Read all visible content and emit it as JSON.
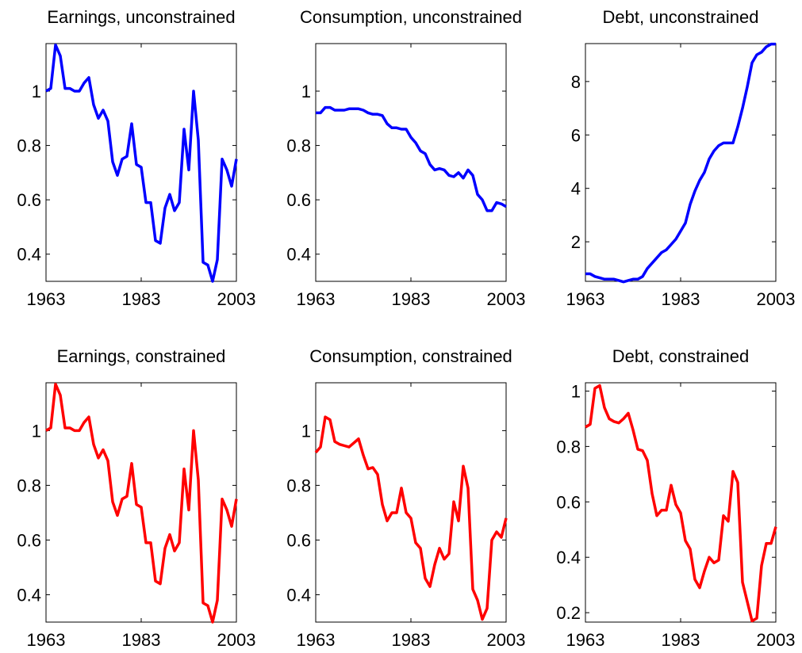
{
  "chart_data": [
    {
      "type": "line",
      "title": "Earnings, unconstrained",
      "color": "#0000ff",
      "x": [
        1963,
        1964,
        1965,
        1966,
        1967,
        1968,
        1969,
        1970,
        1971,
        1972,
        1973,
        1974,
        1975,
        1976,
        1977,
        1978,
        1979,
        1980,
        1981,
        1982,
        1983,
        1984,
        1985,
        1986,
        1987,
        1988,
        1989,
        1990,
        1991,
        1992,
        1993,
        1994,
        1995,
        1996,
        1997,
        1998,
        1999,
        2000,
        2001,
        2002,
        2003
      ],
      "values": [
        1.0,
        1.01,
        1.17,
        1.13,
        1.01,
        1.01,
        1.0,
        1.0,
        1.03,
        1.05,
        0.95,
        0.9,
        0.93,
        0.89,
        0.74,
        0.69,
        0.75,
        0.76,
        0.88,
        0.73,
        0.72,
        0.59,
        0.59,
        0.45,
        0.44,
        0.57,
        0.62,
        0.56,
        0.59,
        0.86,
        0.71,
        1.0,
        0.82,
        0.37,
        0.36,
        0.3,
        0.38,
        0.75,
        0.71,
        0.65,
        0.75
      ],
      "xlim": [
        1963,
        2003
      ],
      "xticks": [
        1963,
        1983,
        2003
      ],
      "ylim": [
        0.3,
        1.175
      ],
      "yticks": [
        0.4,
        0.6,
        0.8,
        1
      ]
    },
    {
      "type": "line",
      "title": "Consumption, unconstrained",
      "color": "#0000ff",
      "x": [
        1963,
        1964,
        1965,
        1966,
        1967,
        1968,
        1969,
        1970,
        1971,
        1972,
        1973,
        1974,
        1975,
        1976,
        1977,
        1978,
        1979,
        1980,
        1981,
        1982,
        1983,
        1984,
        1985,
        1986,
        1987,
        1988,
        1989,
        1990,
        1991,
        1992,
        1993,
        1994,
        1995,
        1996,
        1997,
        1998,
        1999,
        2000,
        2001,
        2002,
        2003
      ],
      "values": [
        0.92,
        0.92,
        0.94,
        0.94,
        0.93,
        0.93,
        0.93,
        0.935,
        0.935,
        0.935,
        0.93,
        0.92,
        0.915,
        0.915,
        0.91,
        0.88,
        0.865,
        0.865,
        0.86,
        0.86,
        0.83,
        0.81,
        0.78,
        0.77,
        0.73,
        0.71,
        0.715,
        0.71,
        0.69,
        0.685,
        0.7,
        0.68,
        0.71,
        0.69,
        0.62,
        0.6,
        0.56,
        0.56,
        0.59,
        0.585,
        0.575
      ],
      "xlim": [
        1963,
        2003
      ],
      "xticks": [
        1963,
        1983,
        2003
      ],
      "ylim": [
        0.3,
        1.175
      ],
      "yticks": [
        0.4,
        0.6,
        0.8,
        1
      ]
    },
    {
      "type": "line",
      "title": "Debt, unconstrained",
      "color": "#0000ff",
      "x": [
        1963,
        1964,
        1965,
        1966,
        1967,
        1968,
        1969,
        1970,
        1971,
        1972,
        1973,
        1974,
        1975,
        1976,
        1977,
        1978,
        1979,
        1980,
        1981,
        1982,
        1983,
        1984,
        1985,
        1986,
        1987,
        1988,
        1989,
        1990,
        1991,
        1992,
        1993,
        1994,
        1995,
        1996,
        1997,
        1998,
        1999,
        2000,
        2001,
        2002,
        2003
      ],
      "values": [
        0.8,
        0.8,
        0.7,
        0.65,
        0.6,
        0.6,
        0.6,
        0.55,
        0.5,
        0.55,
        0.6,
        0.6,
        0.7,
        1.0,
        1.2,
        1.4,
        1.6,
        1.7,
        1.9,
        2.1,
        2.4,
        2.7,
        3.4,
        3.9,
        4.3,
        4.6,
        5.1,
        5.4,
        5.6,
        5.7,
        5.7,
        5.7,
        6.3,
        7.0,
        7.8,
        8.7,
        9.0,
        9.1,
        9.3,
        9.4,
        9.4
      ],
      "xlim": [
        1963,
        2003
      ],
      "xticks": [
        1963,
        1983,
        2003
      ],
      "ylim": [
        0.52,
        9.42
      ],
      "yticks": [
        2,
        4,
        6,
        8
      ]
    },
    {
      "type": "line",
      "title": "Earnings, constrained",
      "color": "#ff0000",
      "x": [
        1963,
        1964,
        1965,
        1966,
        1967,
        1968,
        1969,
        1970,
        1971,
        1972,
        1973,
        1974,
        1975,
        1976,
        1977,
        1978,
        1979,
        1980,
        1981,
        1982,
        1983,
        1984,
        1985,
        1986,
        1987,
        1988,
        1989,
        1990,
        1991,
        1992,
        1993,
        1994,
        1995,
        1996,
        1997,
        1998,
        1999,
        2000,
        2001,
        2002,
        2003
      ],
      "values": [
        1.0,
        1.01,
        1.17,
        1.13,
        1.01,
        1.01,
        1.0,
        1.0,
        1.03,
        1.05,
        0.95,
        0.9,
        0.93,
        0.89,
        0.74,
        0.69,
        0.75,
        0.76,
        0.88,
        0.73,
        0.72,
        0.59,
        0.59,
        0.45,
        0.44,
        0.57,
        0.62,
        0.56,
        0.59,
        0.86,
        0.71,
        1.0,
        0.82,
        0.37,
        0.36,
        0.3,
        0.38,
        0.75,
        0.71,
        0.65,
        0.75
      ],
      "xlim": [
        1963,
        2003
      ],
      "xticks": [
        1963,
        1983,
        2003
      ],
      "ylim": [
        0.3,
        1.175
      ],
      "yticks": [
        0.4,
        0.6,
        0.8,
        1
      ]
    },
    {
      "type": "line",
      "title": "Consumption, constrained",
      "color": "#ff0000",
      "x": [
        1963,
        1964,
        1965,
        1966,
        1967,
        1968,
        1969,
        1970,
        1971,
        1972,
        1973,
        1974,
        1975,
        1976,
        1977,
        1978,
        1979,
        1980,
        1981,
        1982,
        1983,
        1984,
        1985,
        1986,
        1987,
        1988,
        1989,
        1990,
        1991,
        1992,
        1993,
        1994,
        1995,
        1996,
        1997,
        1998,
        1999,
        2000,
        2001,
        2002,
        2003
      ],
      "values": [
        0.92,
        0.94,
        1.05,
        1.04,
        0.96,
        0.95,
        0.945,
        0.94,
        0.955,
        0.97,
        0.91,
        0.86,
        0.865,
        0.84,
        0.73,
        0.67,
        0.7,
        0.7,
        0.79,
        0.7,
        0.68,
        0.59,
        0.57,
        0.46,
        0.43,
        0.51,
        0.57,
        0.53,
        0.55,
        0.74,
        0.67,
        0.87,
        0.79,
        0.42,
        0.38,
        0.31,
        0.35,
        0.6,
        0.63,
        0.61,
        0.68
      ],
      "xlim": [
        1963,
        2003
      ],
      "xticks": [
        1963,
        1983,
        2003
      ],
      "ylim": [
        0.3,
        1.175
      ],
      "yticks": [
        0.4,
        0.6,
        0.8,
        1
      ]
    },
    {
      "type": "line",
      "title": "Debt, constrained",
      "color": "#ff0000",
      "x": [
        1963,
        1964,
        1965,
        1966,
        1967,
        1968,
        1969,
        1970,
        1971,
        1972,
        1973,
        1974,
        1975,
        1976,
        1977,
        1978,
        1979,
        1980,
        1981,
        1982,
        1983,
        1984,
        1985,
        1986,
        1987,
        1988,
        1989,
        1990,
        1991,
        1992,
        1993,
        1994,
        1995,
        1996,
        1997,
        1998,
        1999,
        2000,
        2001,
        2002,
        2003
      ],
      "values": [
        0.87,
        0.88,
        1.01,
        1.02,
        0.94,
        0.9,
        0.89,
        0.885,
        0.9,
        0.92,
        0.86,
        0.79,
        0.785,
        0.75,
        0.63,
        0.55,
        0.57,
        0.57,
        0.66,
        0.59,
        0.56,
        0.46,
        0.43,
        0.32,
        0.29,
        0.35,
        0.4,
        0.38,
        0.39,
        0.55,
        0.53,
        0.71,
        0.67,
        0.31,
        0.24,
        0.17,
        0.18,
        0.37,
        0.45,
        0.45,
        0.51
      ],
      "xlim": [
        1963,
        2003
      ],
      "xticks": [
        1963,
        1983,
        2003
      ],
      "ylim": [
        0.166,
        1.03
      ],
      "yticks": [
        0.2,
        0.4,
        0.6,
        0.8,
        1
      ]
    }
  ]
}
